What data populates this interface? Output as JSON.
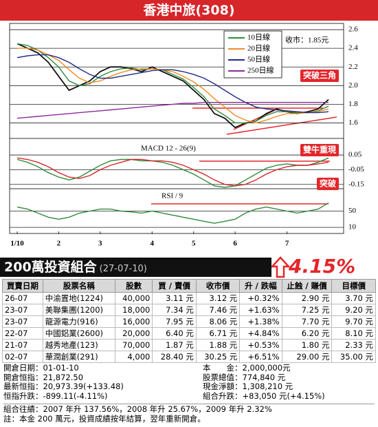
{
  "chart_data": [
    {
      "type": "line",
      "title": "香港中旅(308)",
      "close_label": "收市：1.85元",
      "annotation": "突破三角",
      "legend": "upper-right",
      "grid": true,
      "ylim": [
        1.5,
        2.63
      ],
      "yticks": [
        1.6,
        1.8,
        {
          "value": 2,
          "label": "2.0"
        },
        2.2,
        2.4,
        2.6
      ],
      "series": [
        {
          "name": "收市",
          "color": "#111111",
          "values": [
            2.45,
            2.4,
            2.35,
            2.25,
            2.1,
            1.95,
            2.0,
            2.05,
            2.15,
            2.2,
            2.2,
            2.18,
            2.15,
            2.2,
            2.15,
            2.1,
            2.05,
            1.95,
            1.85,
            1.7,
            1.65,
            1.55,
            1.6,
            1.62,
            1.7,
            1.75,
            1.72,
            1.7,
            1.72,
            1.75,
            1.85
          ]
        },
        {
          "name": "10日線",
          "color": "#2e8b3a",
          "values": [
            2.45,
            2.43,
            2.38,
            2.3,
            2.2,
            2.05,
            2.0,
            2.02,
            2.1,
            2.15,
            2.18,
            2.19,
            2.17,
            2.18,
            2.17,
            2.12,
            2.07,
            1.98,
            1.88,
            1.75,
            1.68,
            1.6,
            1.6,
            1.62,
            1.68,
            1.72,
            1.72,
            1.71,
            1.71,
            1.73,
            1.78
          ]
        },
        {
          "name": "20日線",
          "color": "#f08a24",
          "values": [
            2.4,
            2.4,
            2.38,
            2.33,
            2.27,
            2.17,
            2.08,
            2.03,
            2.05,
            2.1,
            2.14,
            2.17,
            2.18,
            2.18,
            2.17,
            2.15,
            2.1,
            2.04,
            1.96,
            1.86,
            1.77,
            1.68,
            1.63,
            1.6,
            1.63,
            1.67,
            1.7,
            1.7,
            1.71,
            1.72,
            1.75
          ]
        },
        {
          "name": "50日線",
          "color": "#1f2a80",
          "values": [
            2.3,
            2.32,
            2.33,
            2.33,
            2.3,
            2.25,
            2.18,
            2.12,
            2.08,
            2.08,
            2.1,
            2.12,
            2.14,
            2.16,
            2.17,
            2.17,
            2.15,
            2.12,
            2.08,
            2.02,
            1.95,
            1.88,
            1.82,
            1.77,
            1.75,
            1.74,
            1.73,
            1.72,
            1.71,
            1.71,
            1.72
          ]
        },
        {
          "name": "250日線",
          "color": "#8b2a9b",
          "values": [
            1.65,
            1.66,
            1.67,
            1.68,
            1.69,
            1.7,
            1.71,
            1.72,
            1.73,
            1.74,
            1.75,
            1.76,
            1.77,
            1.78,
            1.79,
            1.8,
            1.81,
            1.81,
            1.82,
            1.82,
            1.82,
            1.82,
            1.82,
            1.82,
            1.82,
            1.82,
            1.82,
            1.82,
            1.82,
            1.82,
            1.82
          ]
        }
      ]
    },
    {
      "type": "line",
      "title": "MACD 12 - 26(9)",
      "annotation": "雙牛重現",
      "grid": true,
      "ylim": [
        -0.17,
        0.13
      ],
      "yticks": [
        0.05,
        -0.05,
        -0.15
      ],
      "series": [
        {
          "color": "#2e8b3a",
          "values": [
            0.02,
            0.0,
            -0.03,
            -0.07,
            -0.1,
            -0.12,
            -0.1,
            -0.06,
            -0.02,
            0.01,
            0.02,
            0.02,
            0.01,
            0.01,
            0.0,
            -0.02,
            -0.05,
            -0.08,
            -0.12,
            -0.16,
            -0.17,
            -0.16,
            -0.12,
            -0.08,
            -0.04,
            -0.02,
            -0.01,
            -0.02,
            -0.02,
            0.0,
            0.03
          ]
        },
        {
          "color": "#d6262a",
          "values": [
            0.03,
            0.02,
            0.0,
            -0.03,
            -0.07,
            -0.1,
            -0.11,
            -0.09,
            -0.05,
            -0.02,
            0.0,
            0.02,
            0.02,
            0.01,
            0.01,
            0.0,
            -0.02,
            -0.05,
            -0.08,
            -0.12,
            -0.15,
            -0.16,
            -0.15,
            -0.12,
            -0.08,
            -0.05,
            -0.03,
            -0.02,
            -0.02,
            -0.01,
            0.0
          ]
        }
      ]
    },
    {
      "type": "line",
      "title": "RSI / 9",
      "annotation": "突破",
      "grid": true,
      "ylim": [
        0,
        100
      ],
      "yticks": [
        50,
        10
      ],
      "categories": [
        "1/10",
        null,
        null,
        null,
        "2",
        null,
        null,
        null,
        "3",
        null,
        null,
        null,
        null,
        "4",
        null,
        null,
        null,
        "5",
        null,
        null,
        null,
        "6",
        null,
        null,
        null,
        null,
        "7",
        null,
        null,
        null,
        null
      ],
      "series": [
        {
          "color": "#2e8b3a",
          "values": [
            60,
            55,
            45,
            35,
            30,
            35,
            45,
            50,
            55,
            55,
            50,
            48,
            45,
            50,
            45,
            40,
            35,
            30,
            25,
            20,
            25,
            30,
            45,
            55,
            60,
            55,
            50,
            45,
            50,
            55,
            70
          ]
        }
      ]
    }
  ],
  "portfolio": {
    "title": "200萬投資組合",
    "date": "(27-07-10)",
    "change": "4.15%",
    "table": {
      "header": [
        "買賣日期",
        "股票名稱",
        "股數",
        "買 / 賣價",
        "收市價",
        "升 / 跌幅",
        "止蝕 / 賺價",
        "目標價"
      ],
      "rows": [
        [
          "26-07",
          "中渝置地(1224)",
          "40,000",
          "3.11 元",
          "3.12 元",
          "+0.32%",
          "2.90 元",
          "3.70 元"
        ],
        [
          "23-07",
          "美聯集團(1200)",
          "18,000",
          "7.34 元",
          "7.46 元",
          "+1.63%",
          "7.25 元",
          "9.20 元"
        ],
        [
          "23-07",
          "龍源電力(916)",
          "16,000",
          "7.95 元",
          "8.06 元",
          "+1.38%",
          "7.70 元",
          "9.70 元"
        ],
        [
          "22-07",
          "中國鋁業(2600)",
          "20,000",
          "6.40 元",
          "6.71 元",
          "+4.84%",
          "6.20 元",
          "8.10 元"
        ],
        [
          "21-07",
          "越秀地產(123)",
          "70,000",
          "1.87 元",
          "1.88 元",
          "+0.53%",
          "1.80 元",
          "2.33 元"
        ],
        [
          "02-07",
          "華潤創業(291)",
          "4,000",
          "28.40 元",
          "30.25 元",
          "+6.51%",
          "29.00 元",
          "35.00 元"
        ]
      ]
    },
    "info_left": [
      "開倉日期：01-01-10",
      "開倉恒指：21,872.50",
      "最新恒指：20,973.39(+133.48)",
      "恒指升跌：-899.11(-4.11%)"
    ],
    "info_right": [
      "本　　金：2,000,000元",
      "股票總值：774,840 元",
      "現金淨額：1,308,210 元",
      "組合升跌：+83,050 元(+4.15%)"
    ],
    "notes": [
      "組合往績：2007 年升 137.56%，2008 年升 25.67%，2009 年升 2.32%",
      "註：本金 200 萬元，投資成績按年結算，翌年重新開倉。"
    ]
  }
}
